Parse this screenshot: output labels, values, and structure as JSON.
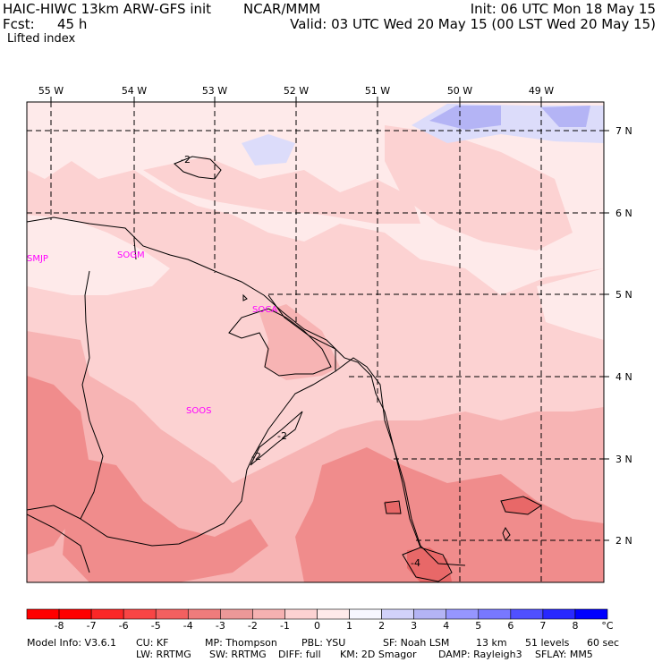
{
  "header": {
    "model_title": "HAIC-HIWC 13km ARW-GFS init",
    "center": "NCAR/MMM",
    "init_time": "Init: 06 UTC Mon 18 May 15",
    "forecast_label": "Fcst:",
    "forecast_hours": "45 h",
    "valid_time": "Valid: 03 UTC Wed 20 May 15 (00 LST Wed 20 May 15)",
    "field_name": "Lifted index"
  },
  "map": {
    "lon_labels": [
      "55 W",
      "54 W",
      "53 W",
      "52 W",
      "51 W",
      "50 W",
      "49 W"
    ],
    "lat_labels": [
      "7 N",
      "6 N",
      "5 N",
      "4 N",
      "3 N",
      "2 N"
    ],
    "stations": [
      "SMJP",
      "SOGM",
      "SOCA",
      "SOOS"
    ],
    "contour_labels": [
      "-2",
      "-2",
      "-2",
      "-4"
    ],
    "colors": {
      "background_fill": "#fcd2d2",
      "light_fill": "#feeaea",
      "mid_fill": "#f7b4b4",
      "dark_fill": "#f08c8c",
      "darker_fill": "#e86868",
      "cool_fill": "#dcdcfa",
      "blue_fill": "#b4b4f5",
      "station_color": "#ff00ff"
    }
  },
  "colorbar": {
    "labels": [
      "-8",
      "-7",
      "-6",
      "-5",
      "-4",
      "-3",
      "-2",
      "-1",
      "0",
      "1",
      "2",
      "3",
      "4",
      "5",
      "6",
      "7",
      "8"
    ],
    "unit": "°C",
    "colors": [
      "#ff0000",
      "#fb2727",
      "#f84545",
      "#f36060",
      "#ef7c7c",
      "#ec9898",
      "#f5b1b1",
      "#fcd2d2",
      "#ffeaea",
      "#f7f7ff",
      "#d2d2fa",
      "#b4b4f5",
      "#9696ff",
      "#7878ff",
      "#5050ff",
      "#2828ff",
      "#0000ff"
    ]
  },
  "model_info": {
    "line1": [
      "Model Info: V3.6.1",
      "CU: KF",
      "MP: Thompson",
      "PBL: YSU",
      "SF: Noah LSM",
      "13 km",
      "51 levels",
      "60 sec"
    ],
    "line2": [
      "LW: RRTMG",
      "SW: RRTMG",
      "DIFF: full",
      "KM: 2D Smagor",
      "DAMP: Rayleigh3",
      "SFLAY: MM5"
    ]
  }
}
